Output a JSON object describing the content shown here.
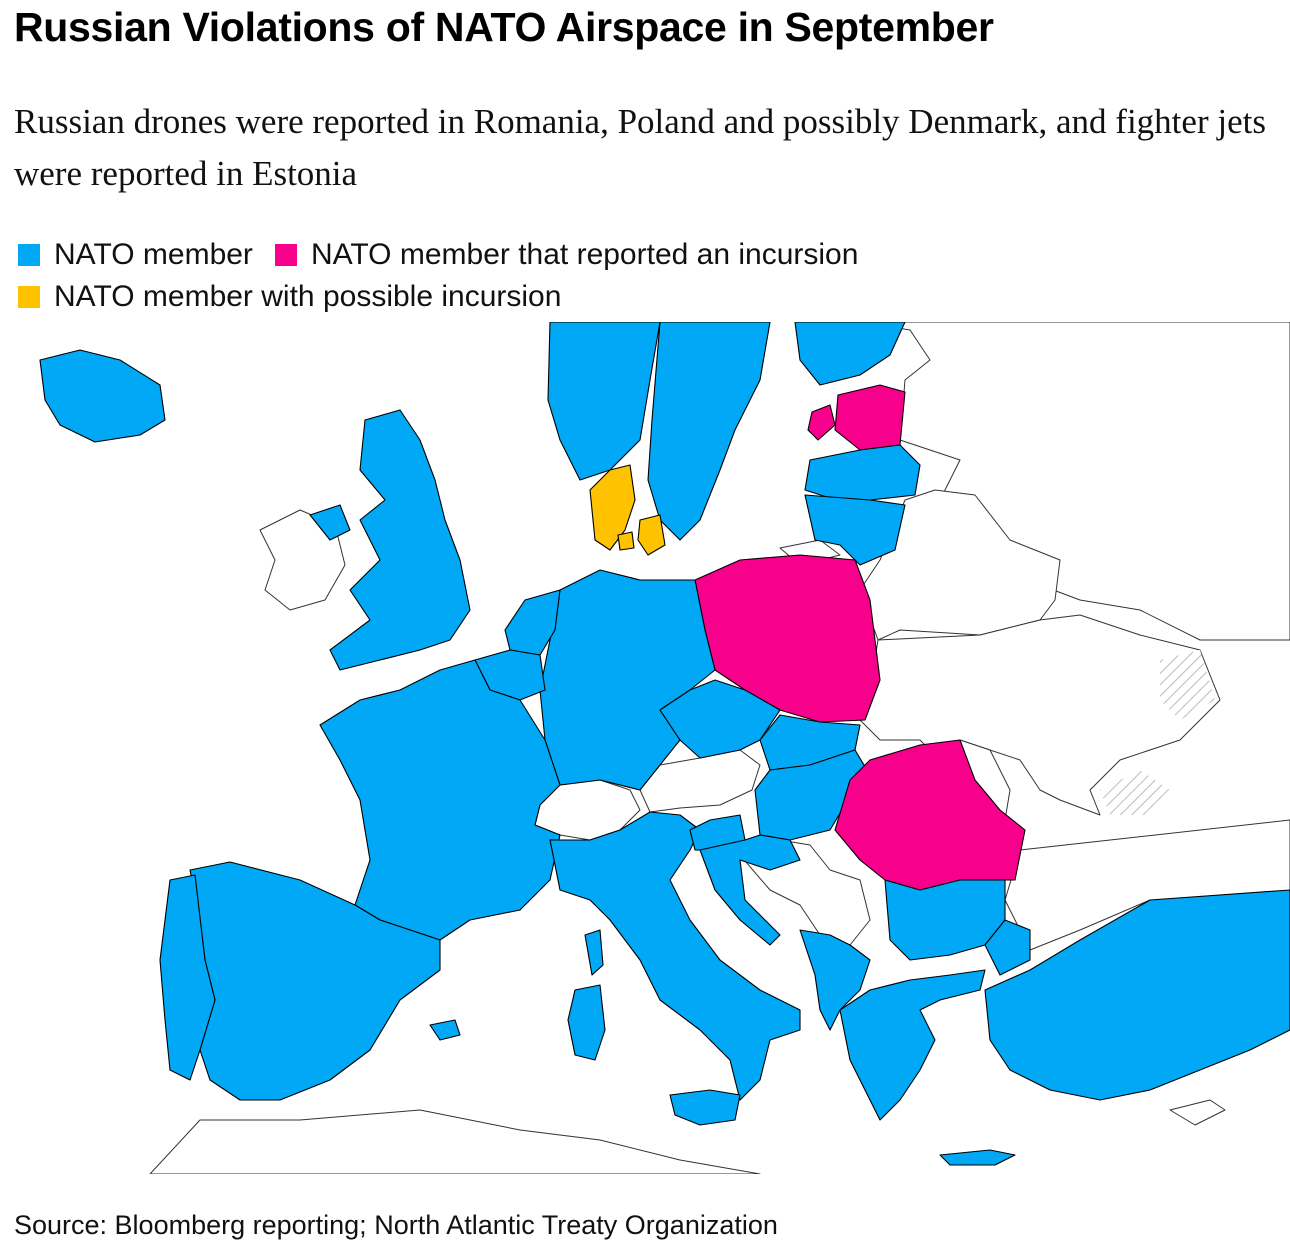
{
  "title": "Russian Violations of NATO Airspace in September",
  "subtitle": "Russian drones were reported in Romania, Poland and possibly Denmark, and fighter jets were reported in Estonia",
  "legend": [
    {
      "label": "NATO member",
      "color": "#00a8f5"
    },
    {
      "label": "NATO member that reported an incursion",
      "color": "#f7008c"
    },
    {
      "label": "NATO member with possible incursion",
      "color": "#fec200"
    }
  ],
  "colors": {
    "nato": "#00a8f5",
    "incursion": "#f7008c",
    "possible": "#fec200",
    "non_nato": "#ffffff",
    "border": "#000000"
  },
  "countries": {
    "incursion": [
      "Romania",
      "Poland",
      "Estonia"
    ],
    "possible": [
      "Denmark"
    ]
  },
  "source": "Source: Bloomberg reporting; North Atlantic Treaty Organization"
}
